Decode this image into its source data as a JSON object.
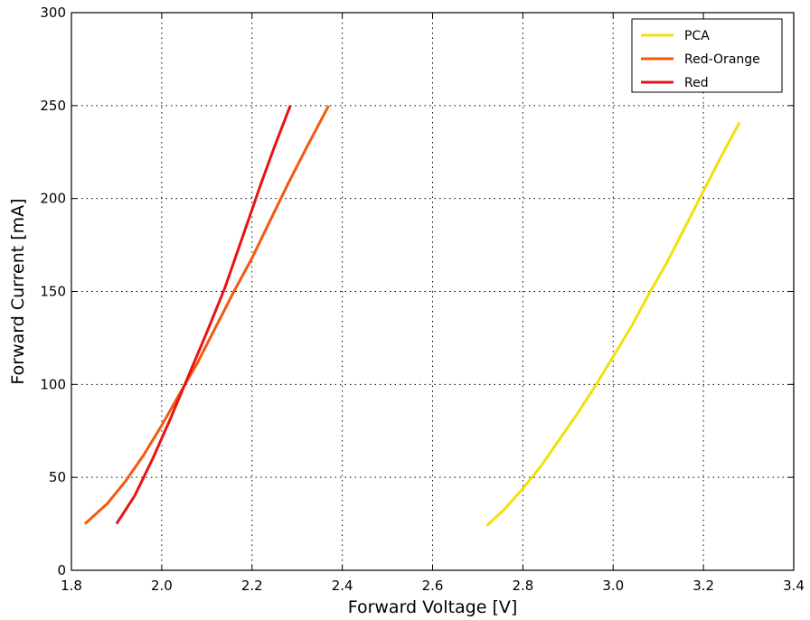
{
  "chart_data": {
    "type": "line",
    "title": "",
    "xlabel": "Forward Voltage [V]",
    "ylabel": "Forward Current [mA]",
    "xlim": [
      1.8,
      3.4
    ],
    "ylim": [
      0,
      300
    ],
    "xticks": [
      "1.8",
      "2.0",
      "2.2",
      "2.4",
      "2.6",
      "2.8",
      "3.0",
      "3.2",
      "3.4"
    ],
    "yticks": [
      "0",
      "50",
      "100",
      "150",
      "200",
      "250",
      "300"
    ],
    "grid": true,
    "legend_position": "top-right",
    "series": [
      {
        "name": "PCA",
        "color": "#f2e00d",
        "x": [
          2.72,
          2.76,
          2.8,
          2.84,
          2.88,
          2.92,
          2.96,
          3.0,
          3.04,
          3.08,
          3.12,
          3.16,
          3.2,
          3.24,
          3.28
        ],
        "y": [
          24,
          33,
          44,
          56,
          70,
          84,
          99,
          115,
          131,
          149,
          166,
          185,
          204,
          223,
          241
        ]
      },
      {
        "name": "Red-Orange",
        "color": "#f25a10",
        "x": [
          1.83,
          1.88,
          1.92,
          1.96,
          2.0,
          2.04,
          2.08,
          2.12,
          2.16,
          2.2,
          2.24,
          2.28,
          2.32,
          2.37
        ],
        "y": [
          25,
          36,
          48,
          62,
          78,
          95,
          112,
          131,
          150,
          168,
          188,
          208,
          227,
          250
        ]
      },
      {
        "name": "Red",
        "color": "#e81414",
        "x": [
          1.9,
          1.94,
          1.98,
          2.02,
          2.06,
          2.1,
          2.14,
          2.18,
          2.22,
          2.25,
          2.285
        ],
        "y": [
          25,
          40,
          60,
          82,
          105,
          128,
          152,
          180,
          208,
          228,
          250
        ]
      }
    ]
  }
}
